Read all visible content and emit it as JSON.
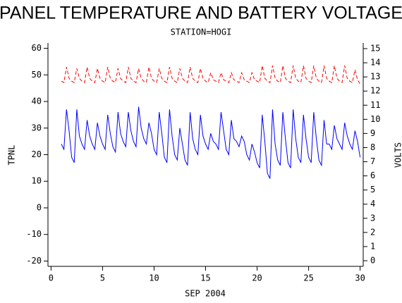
{
  "chart_data": {
    "type": "line",
    "title": "PANEL TEMPERATURE AND BATTERY VOLTAGE",
    "subtitle": "STATION=HOGI",
    "xlabel": "SEP 2004",
    "ylabel": "TPNL",
    "y2label": "VOLTS",
    "x": [
      1,
      1.25,
      1.5,
      1.75,
      2,
      2.25,
      2.5,
      2.75,
      3,
      3.25,
      3.5,
      3.75,
      4,
      4.25,
      4.5,
      4.75,
      5,
      5.25,
      5.5,
      5.75,
      6,
      6.25,
      6.5,
      6.75,
      7,
      7.25,
      7.5,
      7.75,
      8,
      8.25,
      8.5,
      8.75,
      9,
      9.25,
      9.5,
      9.75,
      10,
      10.25,
      10.5,
      10.75,
      11,
      11.25,
      11.5,
      11.75,
      12,
      12.25,
      12.5,
      12.75,
      13,
      13.25,
      13.5,
      13.75,
      14,
      14.25,
      14.5,
      14.75,
      15,
      15.25,
      15.5,
      15.75,
      16,
      16.25,
      16.5,
      16.75,
      17,
      17.25,
      17.5,
      17.75,
      18,
      18.25,
      18.5,
      18.75,
      19,
      19.25,
      19.5,
      19.75,
      20,
      20.25,
      20.5,
      20.75,
      21,
      21.25,
      21.5,
      21.75,
      22,
      22.25,
      22.5,
      22.75,
      23,
      23.25,
      23.5,
      23.75,
      24,
      24.25,
      24.5,
      24.75,
      25,
      25.25,
      25.5,
      25.75,
      26,
      26.25,
      26.5,
      26.75,
      27,
      27.25,
      27.5,
      27.75,
      28,
      28.25,
      28.5,
      28.75,
      29,
      29.25,
      29.5,
      29.75,
      30
    ],
    "series": [
      {
        "name": "TPNL",
        "color": "#0000ff",
        "axis": "y",
        "dash": false,
        "values": [
          24,
          22,
          37,
          29,
          19,
          17,
          37,
          27,
          24,
          22,
          33,
          27,
          24,
          22,
          32,
          27,
          24,
          22,
          35,
          28,
          23,
          21,
          36,
          28,
          25,
          23,
          36,
          29,
          25,
          23,
          38,
          30,
          26,
          24,
          32,
          28,
          22,
          20,
          36,
          28,
          19,
          17,
          37,
          27,
          20,
          18,
          30,
          24,
          18,
          16,
          36,
          26,
          22,
          20,
          35,
          27,
          24,
          22,
          28,
          25,
          24,
          22,
          36,
          29,
          22,
          20,
          33,
          26,
          25,
          23,
          27,
          25,
          20,
          18,
          24,
          21,
          17,
          15,
          35,
          25,
          13,
          11,
          37,
          24,
          18,
          16,
          36,
          26,
          17,
          15,
          37,
          26,
          19,
          17,
          35,
          26,
          19,
          17,
          36,
          26,
          18,
          16,
          33,
          24,
          24,
          22,
          31,
          26,
          24,
          22,
          32,
          27,
          24,
          22,
          29,
          25,
          19
        ]
      },
      {
        "name": "VOLTS",
        "color": "#ff0000",
        "axis": "y2",
        "dash": true,
        "values": [
          12.7,
          12.6,
          13.7,
          12.9,
          12.7,
          12.6,
          13.6,
          12.9,
          12.7,
          12.6,
          13.7,
          12.9,
          12.7,
          12.6,
          13.6,
          12.9,
          12.7,
          12.6,
          13.7,
          12.9,
          12.7,
          12.6,
          13.6,
          12.9,
          12.7,
          12.6,
          13.7,
          12.9,
          12.7,
          12.6,
          13.6,
          12.9,
          12.7,
          12.6,
          13.7,
          12.9,
          12.7,
          12.6,
          13.6,
          12.9,
          12.7,
          12.6,
          13.7,
          12.9,
          12.7,
          12.6,
          13.6,
          12.9,
          12.7,
          12.6,
          13.7,
          12.9,
          12.7,
          12.6,
          13.6,
          12.9,
          12.7,
          12.6,
          13.3,
          12.8,
          12.7,
          12.6,
          13.3,
          12.8,
          12.7,
          12.6,
          13.3,
          12.8,
          12.7,
          12.6,
          13.3,
          12.8,
          12.7,
          12.6,
          13.3,
          12.8,
          12.7,
          12.6,
          13.8,
          12.9,
          12.7,
          12.6,
          13.8,
          12.9,
          12.7,
          12.6,
          13.8,
          12.9,
          12.7,
          12.6,
          13.8,
          12.9,
          12.7,
          12.6,
          13.8,
          12.9,
          12.7,
          12.6,
          13.8,
          12.9,
          12.7,
          12.6,
          13.8,
          12.9,
          12.7,
          12.6,
          13.8,
          12.9,
          12.7,
          12.6,
          13.8,
          12.9,
          12.7,
          12.6,
          13.5,
          12.8,
          12.5
        ]
      }
    ],
    "xlim": [
      -0.3,
      30.3
    ],
    "xticks": [
      0,
      5,
      10,
      15,
      20,
      25,
      30
    ],
    "ylim": [
      -22,
      62
    ],
    "yticks": [
      -20,
      -10,
      0,
      10,
      20,
      30,
      40,
      50,
      60
    ],
    "y2lim": [
      -0.4,
      15.4
    ],
    "y2ticks": [
      0,
      1,
      2,
      3,
      4,
      5,
      6,
      7,
      8,
      9,
      10,
      11,
      12,
      13,
      14,
      15
    ]
  }
}
